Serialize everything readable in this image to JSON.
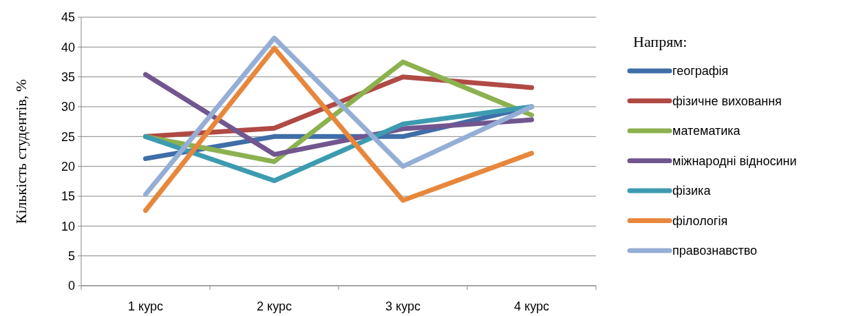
{
  "chart_data": {
    "type": "line",
    "ylabel": "Кількість студентів, %",
    "legend_title": "Напрям:",
    "categories": [
      "1 курс",
      "2 курс",
      "3 курс",
      "4 курс"
    ],
    "ylim": [
      0,
      45
    ],
    "yticks": [
      0,
      5,
      10,
      15,
      20,
      25,
      30,
      35,
      40,
      45
    ],
    "grid": "y",
    "legend": "right",
    "marker": "none",
    "line_style": "solid",
    "series": [
      {
        "name": "географія",
        "color": "#3f6ea8",
        "values": [
          21.3,
          25,
          25,
          30
        ]
      },
      {
        "name": "фізичне виховання",
        "color": "#b04a45",
        "values": [
          25,
          26.4,
          35,
          33.2
        ]
      },
      {
        "name": "математика",
        "color": "#8cb150",
        "values": [
          25,
          20.8,
          37.5,
          28.6
        ]
      },
      {
        "name": "міжнародні відносини",
        "color": "#71568f",
        "values": [
          35.4,
          22,
          26.3,
          27.8
        ]
      },
      {
        "name": "фізика",
        "color": "#3d9bb0",
        "values": [
          25,
          17.6,
          27.1,
          30
        ]
      },
      {
        "name": "філологія",
        "color": "#e7873c",
        "values": [
          12.6,
          39.8,
          14.3,
          22.2
        ]
      },
      {
        "name": "правознавство",
        "color": "#95aed6",
        "values": [
          15.3,
          41.5,
          20,
          30
        ]
      }
    ]
  }
}
